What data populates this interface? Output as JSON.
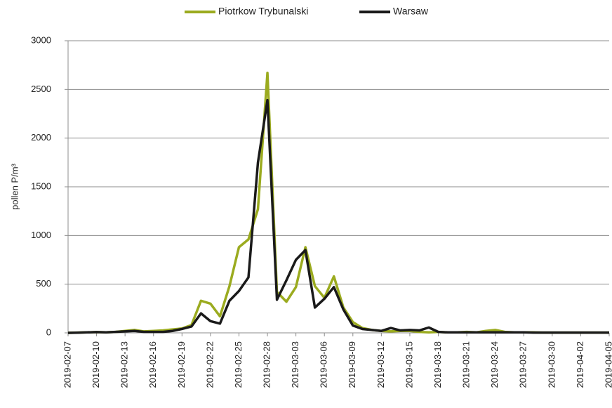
{
  "chart_data": {
    "type": "line",
    "y_label": "pollen P/m³",
    "categories": [
      "2019-02-07",
      null,
      null,
      "2019-02-10",
      null,
      null,
      "2019-02-13",
      null,
      null,
      "2019-02-16",
      null,
      null,
      "2019-02-19",
      null,
      null,
      "2019-02-22",
      null,
      null,
      "2019-02-25",
      null,
      null,
      "2019-02-28",
      null,
      null,
      "2019-03-03",
      null,
      null,
      "2019-03-06",
      null,
      null,
      "2019-03-09",
      null,
      null,
      "2019-03-12",
      null,
      null,
      "2019-03-15",
      null,
      null,
      "2019-03-18",
      null,
      null,
      "2019-03-21",
      null,
      null,
      "2019-03-24",
      null,
      null,
      "2019-03-27",
      null,
      null,
      "2019-03-30",
      null,
      null,
      "2019-04-02",
      null,
      null,
      "2019-04-05"
    ],
    "series": [
      {
        "name": "Piotrkow Trybunalski",
        "color": "#9bab1f",
        "values": [
          0,
          3,
          5,
          8,
          5,
          10,
          20,
          30,
          15,
          20,
          25,
          35,
          45,
          80,
          330,
          300,
          170,
          480,
          880,
          960,
          1270,
          2670,
          420,
          320,
          470,
          880,
          480,
          360,
          580,
          260,
          110,
          50,
          30,
          20,
          15,
          20,
          20,
          10,
          5,
          10,
          5,
          5,
          10,
          5,
          20,
          30,
          10,
          5,
          5,
          5,
          3,
          3,
          3,
          3,
          3,
          3,
          3,
          3
        ]
      },
      {
        "name": "Warsaw",
        "color": "#1a1a1a",
        "values": [
          0,
          2,
          5,
          8,
          5,
          10,
          15,
          20,
          10,
          10,
          10,
          20,
          40,
          65,
          200,
          120,
          95,
          330,
          430,
          570,
          1750,
          2390,
          340,
          540,
          750,
          850,
          260,
          350,
          470,
          240,
          75,
          40,
          30,
          20,
          50,
          25,
          30,
          25,
          55,
          10,
          5,
          5,
          5,
          5,
          5,
          5,
          5,
          5,
          5,
          3,
          3,
          3,
          3,
          3,
          3,
          3,
          3,
          3
        ]
      }
    ],
    "ylim": [
      0,
      3000
    ],
    "yticks": [
      0,
      500,
      1000,
      1500,
      2000,
      2500,
      3000
    ],
    "grid": true,
    "legend": "top"
  }
}
